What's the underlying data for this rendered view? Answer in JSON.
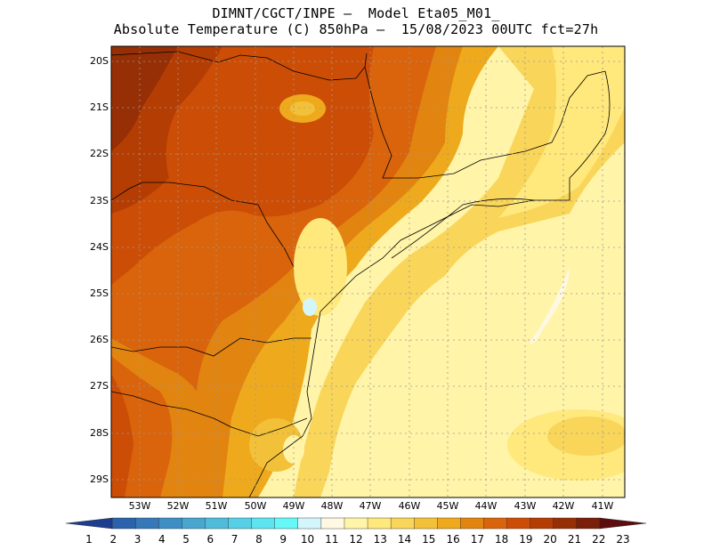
{
  "header": {
    "line1": "DIMNT/CGCT/INPE –  Model Eta05_M01_",
    "line2": "Absolute Temperature (C) 850hPa –  15/08/2023 00UTC fct=27h"
  },
  "map": {
    "lat_labels": [
      "20S",
      "21S",
      "22S",
      "23S",
      "24S",
      "25S",
      "26S",
      "27S",
      "28S",
      "29S"
    ],
    "lon_labels": [
      "53W",
      "52W",
      "51W",
      "50W",
      "49W",
      "48W",
      "47W",
      "46W",
      "45W",
      "44W",
      "43W",
      "42W",
      "41W"
    ],
    "lon_range": [
      -53.7,
      -40.3
    ],
    "lat_range": [
      -29.4,
      -19.9
    ],
    "field": "Absolute Temperature (C) 850hPa",
    "field_summary": {
      "northwest_interior_max": 21,
      "coastal_ocean_east": 12,
      "pattern": "warm (19-21) over interior NW, cooling toward SE coast and ocean (11-14)"
    }
  },
  "colorbar": {
    "labels": [
      "1",
      "2",
      "3",
      "4",
      "5",
      "6",
      "7",
      "8",
      "9",
      "10",
      "11",
      "12",
      "13",
      "14",
      "15",
      "16",
      "17",
      "18",
      "19",
      "20",
      "21",
      "22",
      "23"
    ],
    "colors": [
      "#1e3d8f",
      "#2a63ab",
      "#3678b8",
      "#3f8fc4",
      "#48a6cf",
      "#4fbcdb",
      "#56d0e6",
      "#5ee4ef",
      "#66f7f7",
      "#d4f6fb",
      "#fff8e2",
      "#fff4a8",
      "#ffe87c",
      "#f9d55a",
      "#f3c139",
      "#eeaa1c",
      "#e28410",
      "#d9640c",
      "#cc4e06",
      "#b43d04",
      "#962f06",
      "#7a1f0a",
      "#5c0e0e"
    ]
  }
}
